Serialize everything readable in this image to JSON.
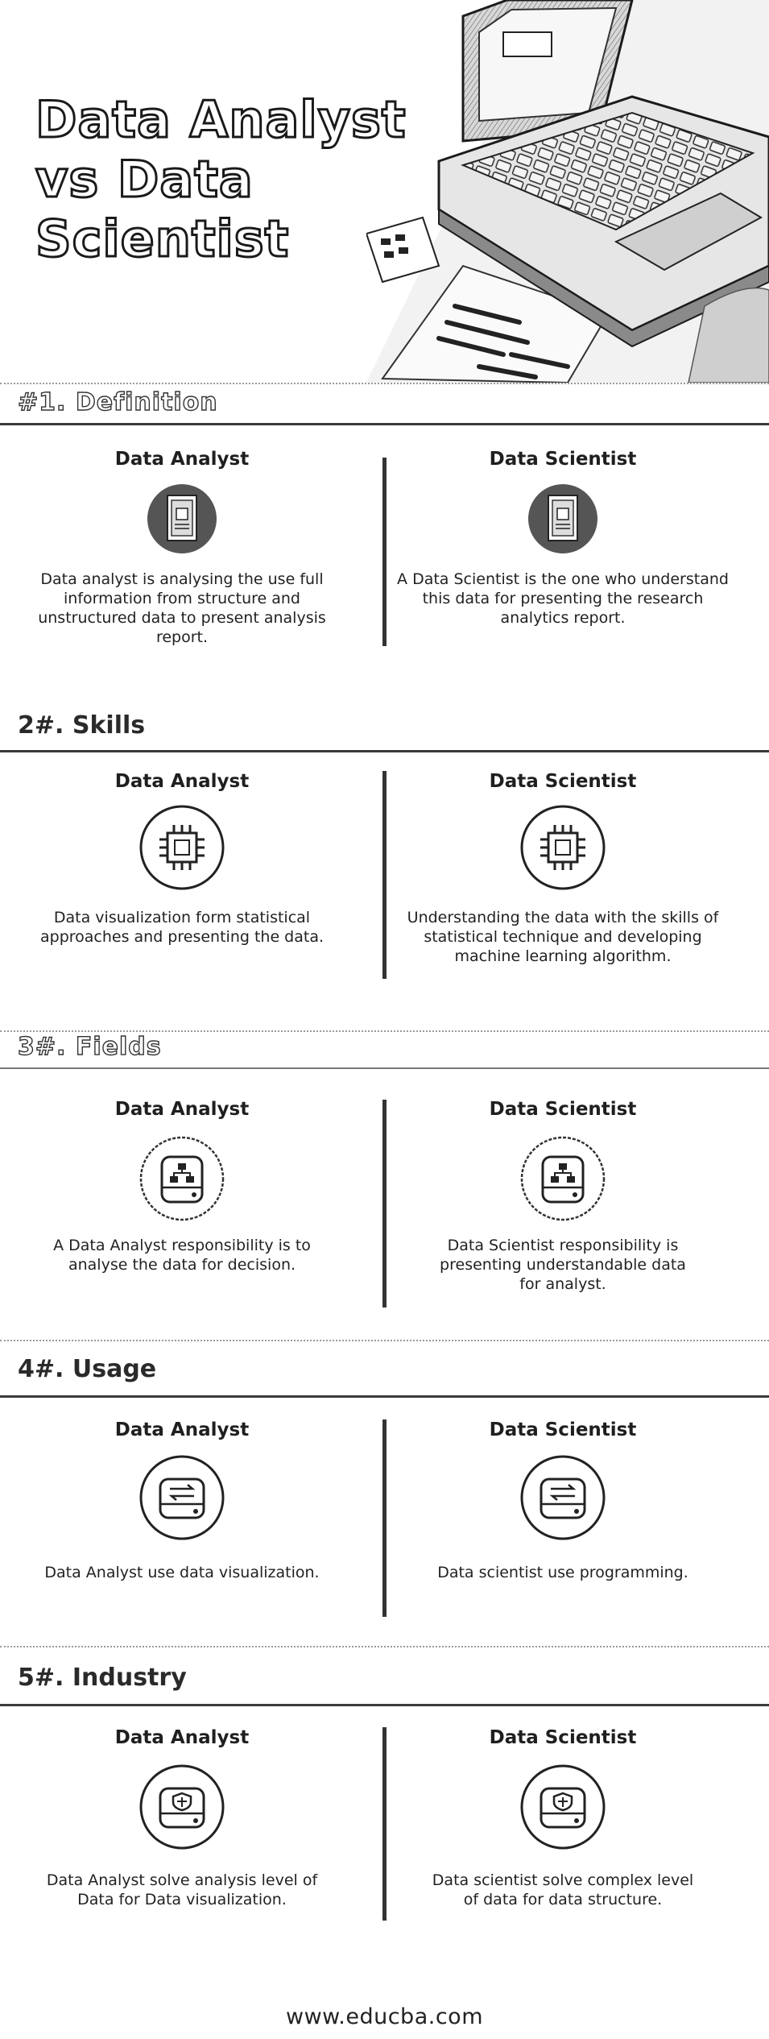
{
  "hero": {
    "title_lines": [
      "Data Analyst",
      "vs Data",
      "Scientist"
    ]
  },
  "sections": [
    {
      "title": "#1. Definition",
      "left": {
        "heading": "Data Analyst",
        "icon": "document-icon",
        "text": "Data analyst is analysing the use full information from structure and unstructured data to present analysis report."
      },
      "right": {
        "heading": "Data Scientist",
        "icon": "document-icon",
        "text": "A Data Scientist is the one who understand this data for presenting the research analytics report."
      }
    },
    {
      "title": "2#. Skills",
      "left": {
        "heading": "Data Analyst",
        "icon": "chip-icon",
        "text": "Data visualization form statistical approaches and presenting the data."
      },
      "right": {
        "heading": "Data Scientist",
        "icon": "chip-icon",
        "text": "Understanding the data with the skills of statistical technique and developing machine learning algorithm."
      }
    },
    {
      "title": "3#. Fields",
      "left": {
        "heading": "Data Analyst",
        "icon": "drive-network-icon",
        "text": "A Data Analyst responsibility is to analyse the data for decision."
      },
      "right": {
        "heading": "Data Scientist",
        "icon": "drive-network-icon",
        "text": "Data Scientist responsibility is presenting understandable data for analyst."
      }
    },
    {
      "title": "4#. Usage",
      "left": {
        "heading": "Data Analyst",
        "icon": "drive-transfer-icon",
        "text": "Data Analyst use data visualization."
      },
      "right": {
        "heading": "Data Scientist",
        "icon": "drive-transfer-icon",
        "text": "Data scientist use programming."
      }
    },
    {
      "title": "5#. Industry",
      "left": {
        "heading": "Data Analyst",
        "icon": "drive-shield-icon",
        "text": "Data Analyst solve analysis level of Data for Data visualization."
      },
      "right": {
        "heading": "Data Scientist",
        "icon": "drive-shield-icon",
        "text": "Data scientist solve complex level of data for data structure."
      }
    }
  ],
  "footer": {
    "url": "www.educba.com"
  }
}
